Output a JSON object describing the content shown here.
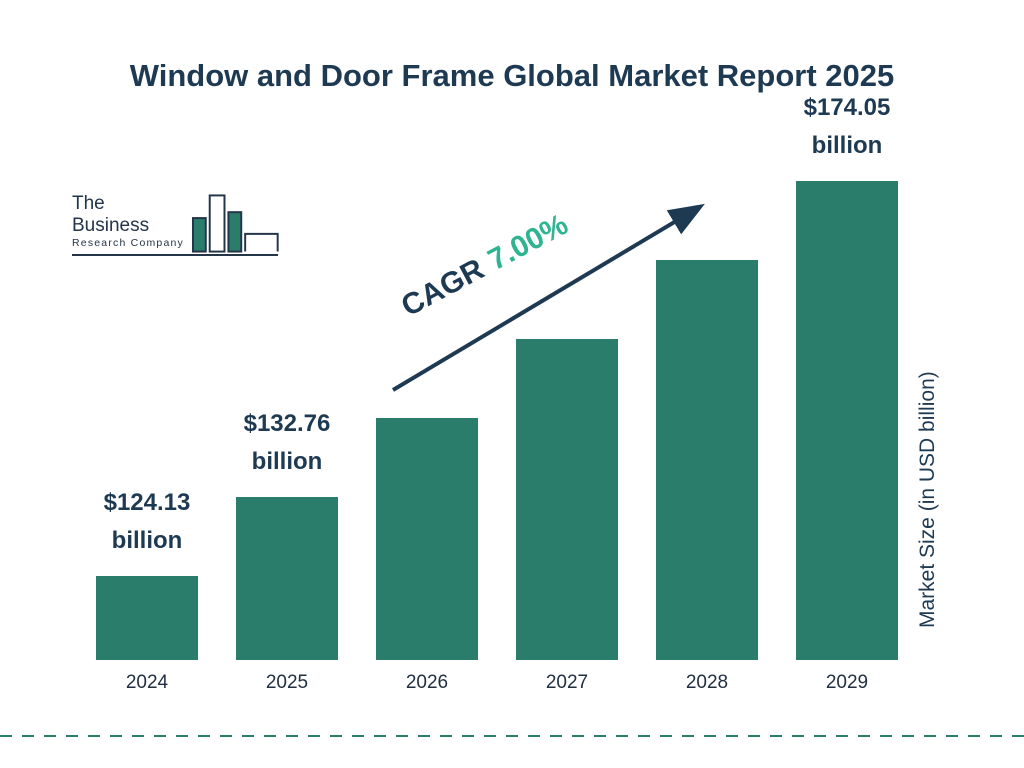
{
  "title": "Window and Door Frame Global Market Report 2025",
  "logo": {
    "line1": "The Business",
    "line2": "Research Company"
  },
  "cagr": {
    "label": "CAGR",
    "value": "7.00%"
  },
  "y_axis_label": "Market Size (in USD billion)",
  "colors": {
    "bar": "#2A7C6B",
    "navy": "#1E3A52",
    "green": "#2EB491",
    "dashed_line": "#2A7C6B"
  },
  "chart_data": {
    "type": "bar",
    "title": "Window and Door Frame Global Market Report 2025",
    "categories": [
      "2024",
      "2025",
      "2026",
      "2027",
      "2028",
      "2029"
    ],
    "values": [
      124.13,
      132.76,
      142.1,
      152.0,
      162.7,
      174.05
    ],
    "value_labels": [
      "$124.13 billion",
      "$132.76 billion",
      null,
      null,
      null,
      "$174.05 billion"
    ],
    "unit": "USD billion",
    "ylabel": "Market Size (in USD billion)",
    "cagr": "7.00%",
    "legend": false,
    "grid": false
  }
}
